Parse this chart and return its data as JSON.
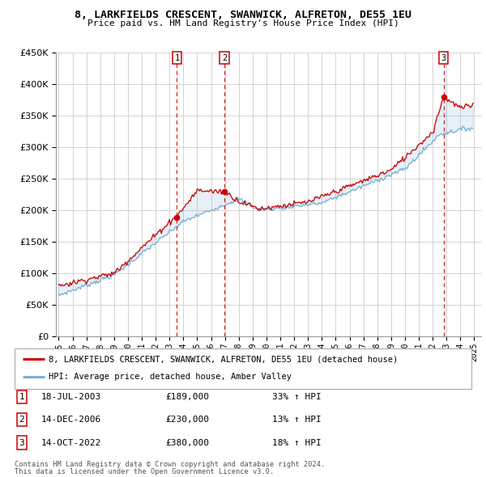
{
  "title": "8, LARKFIELDS CRESCENT, SWANWICK, ALFRETON, DE55 1EU",
  "subtitle": "Price paid vs. HM Land Registry's House Price Index (HPI)",
  "ylim": [
    0,
    450000
  ],
  "xlim_start": 1994.8,
  "xlim_end": 2025.5,
  "bg_color": "#ffffff",
  "grid_color": "#cccccc",
  "sale_color": "#cc0000",
  "hpi_color": "#7ab0d4",
  "transactions": [
    {
      "label": "1",
      "date": "18-JUL-2003",
      "price": 189000,
      "pct": "33%",
      "x": 2003.54
    },
    {
      "label": "2",
      "date": "14-DEC-2006",
      "price": 230000,
      "pct": "13%",
      "x": 2006.96
    },
    {
      "label": "3",
      "date": "14-OCT-2022",
      "price": 380000,
      "pct": "18%",
      "x": 2022.79
    }
  ],
  "legend_entries": [
    {
      "label": "8, LARKFIELDS CRESCENT, SWANWICK, ALFRETON, DE55 1EU (detached house)",
      "color": "#cc0000"
    },
    {
      "label": "HPI: Average price, detached house, Amber Valley",
      "color": "#7ab0d4"
    }
  ],
  "footer1": "Contains HM Land Registry data © Crown copyright and database right 2024.",
  "footer2": "This data is licensed under the Open Government Licence v3.0."
}
